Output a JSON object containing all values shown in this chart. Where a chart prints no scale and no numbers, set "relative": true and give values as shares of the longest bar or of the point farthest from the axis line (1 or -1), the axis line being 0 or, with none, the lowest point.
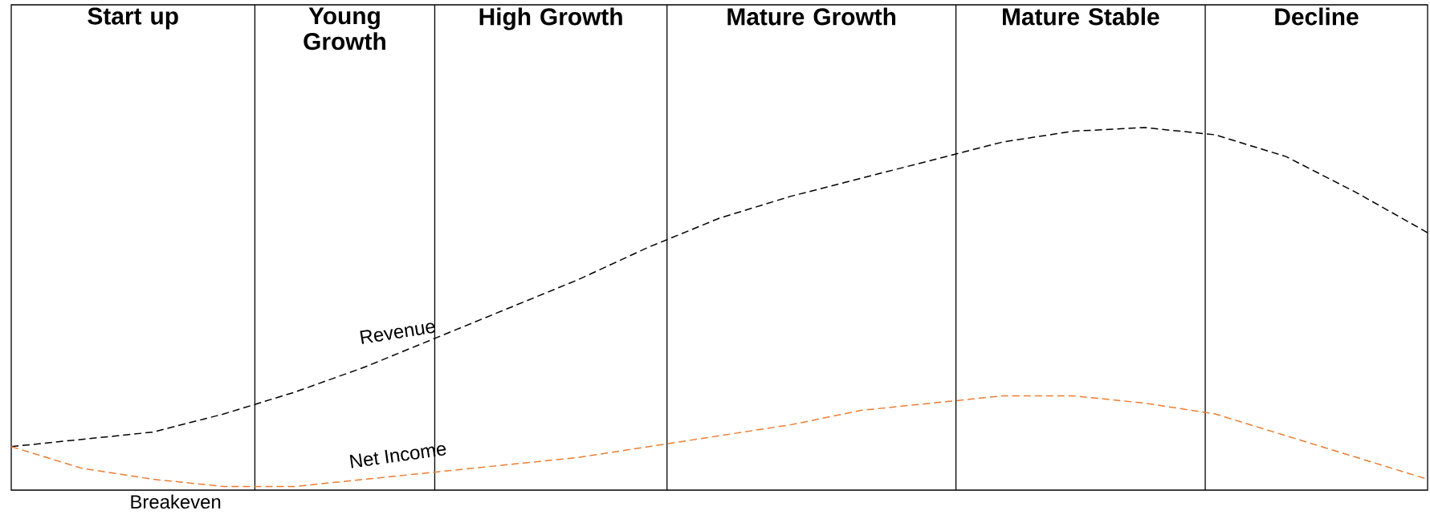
{
  "chart_data": {
    "type": "line",
    "relative": true,
    "line_style": "dashed",
    "marker": "none",
    "tick_labels": false,
    "categories": [
      null,
      null,
      null,
      null,
      null,
      null,
      null,
      null,
      null,
      null,
      null,
      null,
      null,
      null,
      null,
      null,
      null,
      null,
      null,
      null,
      null
    ],
    "series": [
      {
        "name": "Revenue",
        "color": "#000000",
        "values": [
          0.12,
          0.14,
          0.16,
          0.21,
          0.27,
          0.34,
          0.42,
          0.5,
          0.58,
          0.67,
          0.75,
          0.81,
          0.86,
          0.91,
          0.96,
          0.99,
          1,
          0.98,
          0.92,
          0.82,
          0.71
        ]
      },
      {
        "name": "Net Income",
        "color": "#ed7d31",
        "values": [
          0.12,
          0.06,
          0.03,
          0.01,
          0.01,
          0.03,
          0.05,
          0.07,
          0.09,
          0.12,
          0.15,
          0.18,
          0.22,
          0.24,
          0.26,
          0.26,
          0.24,
          0.21,
          0.15,
          0.09,
          0.03
        ]
      }
    ],
    "annotations": [
      "Start up",
      "Young Growth",
      "High Growth",
      "Mature Growth",
      "Mature Stable",
      "Decline",
      "Breakeven"
    ]
  }
}
